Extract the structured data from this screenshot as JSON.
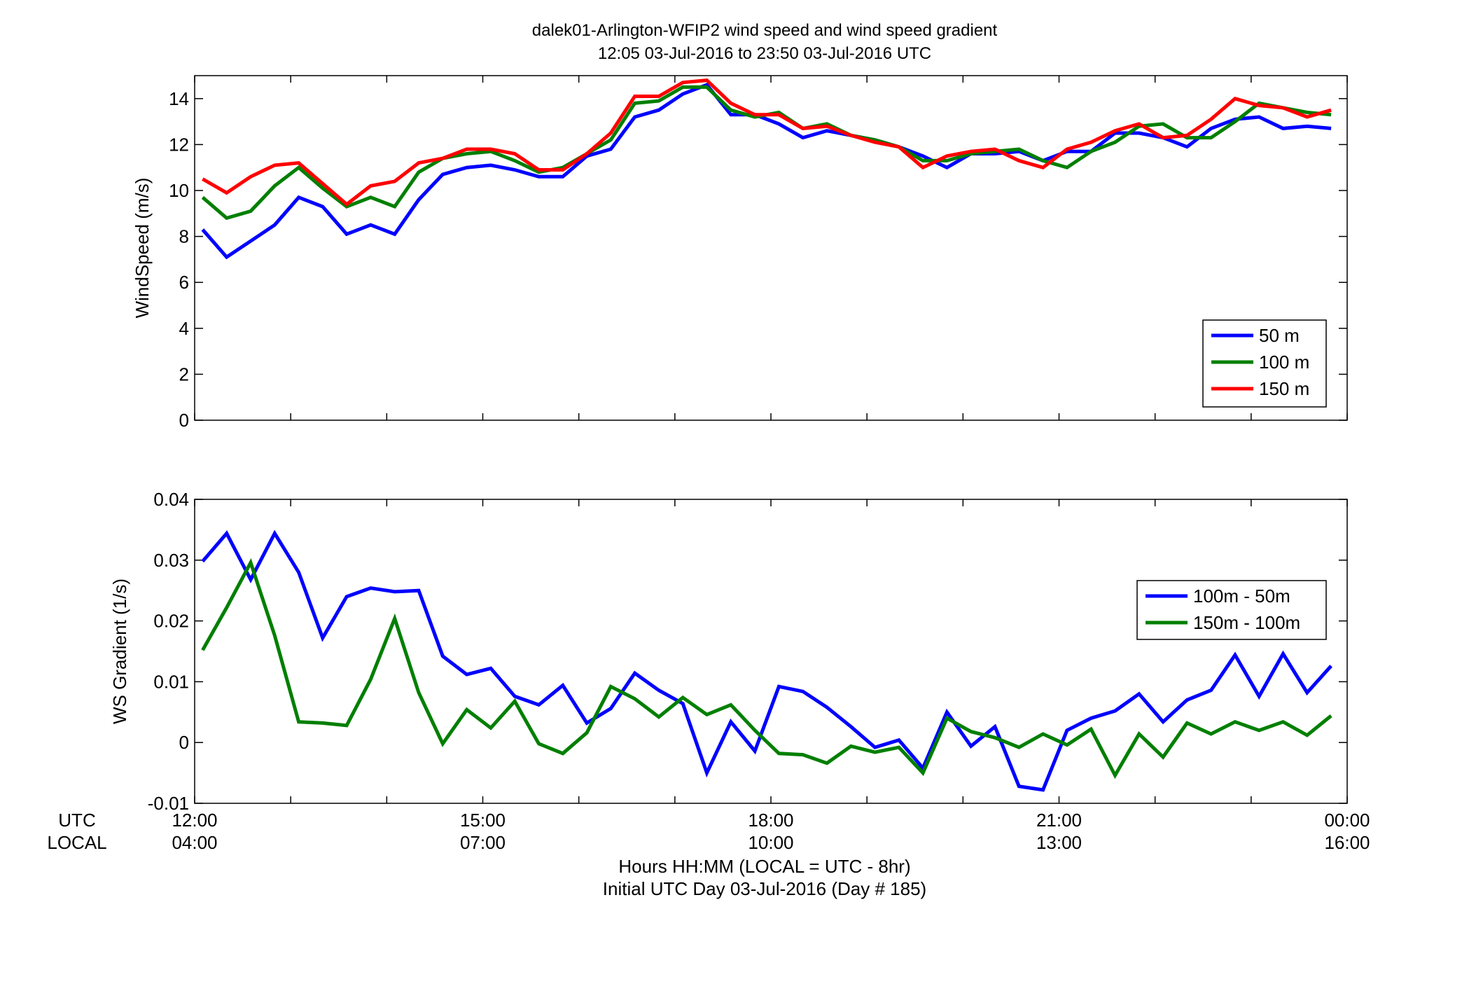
{
  "figure": {
    "title_line1": "dalek01-Arlington-WFIP2  wind speed and wind speed gradient",
    "title_line2": "12:05 03-Jul-2016 to 23:50 03-Jul-2016  UTC",
    "xlabel_line1": "Hours HH:MM  (LOCAL = UTC - 8hr)",
    "xlabel_line2": "Initial UTC Day 03-Jul-2016 (Day # 185)",
    "utc_row_label": "UTC",
    "local_row_label": "LOCAL",
    "utc_ticks": [
      "12:00",
      "15:00",
      "18:00",
      "21:00",
      "00:00"
    ],
    "local_ticks": [
      "04:00",
      "07:00",
      "10:00",
      "13:00",
      "16:00"
    ]
  },
  "chart_data": [
    {
      "type": "line",
      "ylabel": "WindSpeed (m/s)",
      "xlim": [
        12.0,
        24.0
      ],
      "ylim": [
        0,
        15
      ],
      "yticks": [
        0,
        2,
        4,
        6,
        8,
        10,
        12,
        14
      ],
      "ytick_labels": [
        "0",
        "2",
        "4",
        "6",
        "8",
        "10",
        "12",
        "14"
      ],
      "legend_position": "lower-right",
      "x": [
        12.083,
        12.333,
        12.583,
        12.833,
        13.083,
        13.333,
        13.583,
        13.833,
        14.083,
        14.333,
        14.583,
        14.833,
        15.083,
        15.333,
        15.583,
        15.833,
        16.083,
        16.333,
        16.583,
        16.833,
        17.083,
        17.333,
        17.583,
        17.833,
        18.083,
        18.333,
        18.583,
        18.833,
        19.083,
        19.333,
        19.583,
        19.833,
        20.083,
        20.333,
        20.583,
        20.833,
        21.083,
        21.333,
        21.583,
        21.833,
        22.083,
        22.333,
        22.583,
        22.833,
        23.083,
        23.333,
        23.583,
        23.833
      ],
      "series": [
        {
          "name": "50 m",
          "color": "#0000ff",
          "values": [
            8.3,
            7.1,
            7.8,
            8.5,
            9.7,
            9.3,
            8.1,
            8.5,
            8.1,
            9.6,
            10.7,
            11.0,
            11.1,
            10.9,
            10.6,
            10.6,
            11.5,
            11.8,
            13.2,
            13.5,
            14.2,
            14.6,
            13.3,
            13.3,
            12.9,
            12.3,
            12.6,
            12.4,
            12.2,
            11.9,
            11.5,
            11.0,
            11.6,
            11.6,
            11.7,
            11.3,
            11.7,
            11.7,
            12.5,
            12.5,
            12.3,
            11.9,
            12.7,
            13.1,
            13.2,
            12.7,
            12.8,
            12.7
          ]
        },
        {
          "name": "100 m",
          "color": "#007f00",
          "values": [
            9.7,
            8.8,
            9.1,
            10.2,
            11.0,
            10.1,
            9.3,
            9.7,
            9.3,
            10.8,
            11.4,
            11.6,
            11.7,
            11.3,
            10.8,
            11.0,
            11.6,
            12.2,
            13.8,
            13.9,
            14.5,
            14.5,
            13.5,
            13.2,
            13.4,
            12.7,
            12.9,
            12.4,
            12.2,
            11.9,
            11.3,
            11.3,
            11.6,
            11.7,
            11.8,
            11.3,
            11.0,
            11.7,
            12.1,
            12.8,
            12.9,
            12.3,
            12.3,
            13.0,
            13.8,
            13.6,
            13.4,
            13.3
          ]
        },
        {
          "name": "150 m",
          "color": "#ff0000",
          "values": [
            10.5,
            9.9,
            10.6,
            11.1,
            11.2,
            10.3,
            9.4,
            10.2,
            10.4,
            11.2,
            11.4,
            11.8,
            11.8,
            11.6,
            10.9,
            10.9,
            11.6,
            12.5,
            14.1,
            14.1,
            14.7,
            14.8,
            13.8,
            13.3,
            13.3,
            12.7,
            12.8,
            12.4,
            12.1,
            11.9,
            11.0,
            11.5,
            11.7,
            11.8,
            11.3,
            11.0,
            11.8,
            12.1,
            12.6,
            12.9,
            12.3,
            12.4,
            13.1,
            14.0,
            13.7,
            13.6,
            13.2,
            13.5
          ]
        }
      ]
    },
    {
      "type": "line",
      "ylabel": "WS Gradient (1/s)",
      "xlim": [
        12.0,
        24.0
      ],
      "ylim": [
        -0.01,
        0.04
      ],
      "yticks": [
        -0.01,
        0,
        0.01,
        0.02,
        0.03,
        0.04
      ],
      "ytick_labels": [
        "-0.01",
        "0",
        "0.01",
        "0.02",
        "0.03",
        "0.04"
      ],
      "legend_position": "right",
      "x": [
        12.083,
        12.333,
        12.583,
        12.833,
        13.083,
        13.333,
        13.583,
        13.833,
        14.083,
        14.333,
        14.583,
        14.833,
        15.083,
        15.333,
        15.583,
        15.833,
        16.083,
        16.333,
        16.583,
        16.833,
        17.083,
        17.333,
        17.583,
        17.833,
        18.083,
        18.333,
        18.583,
        18.833,
        19.083,
        19.333,
        19.583,
        19.833,
        20.083,
        20.333,
        20.583,
        20.833,
        21.083,
        21.333,
        21.583,
        21.833,
        22.083,
        22.333,
        22.583,
        22.833,
        23.083,
        23.333,
        23.583,
        23.833
      ],
      "series": [
        {
          "name": "100m - 50m",
          "color": "#0000ff",
          "values": [
            0.0298,
            0.0344,
            0.0268,
            0.0344,
            0.028,
            0.0172,
            0.024,
            0.0254,
            0.0248,
            0.025,
            0.0142,
            0.0112,
            0.0122,
            0.0076,
            0.0062,
            0.0094,
            0.0032,
            0.0056,
            0.0114,
            0.0086,
            0.0064,
            -0.005,
            0.0034,
            -0.0014,
            0.0092,
            0.0084,
            0.0058,
            0.0026,
            -0.0008,
            0.0004,
            -0.0042,
            0.005,
            -0.0006,
            0.0026,
            -0.0072,
            -0.0078,
            0.002,
            0.004,
            0.0052,
            0.008,
            0.0034,
            0.007,
            0.0086,
            0.0144,
            0.0076,
            0.0146,
            0.0082,
            0.0126
          ]
        },
        {
          "name": "150m - 100m",
          "color": "#007f00",
          "values": [
            0.0152,
            0.0222,
            0.0296,
            0.0176,
            0.0034,
            0.0032,
            0.0028,
            0.0104,
            0.0204,
            0.0082,
            -0.0002,
            0.0054,
            0.0024,
            0.0068,
            -0.0002,
            -0.0018,
            0.0016,
            0.0092,
            0.0072,
            0.0042,
            0.0074,
            0.0046,
            0.0062,
            0.002,
            -0.0018,
            -0.002,
            -0.0034,
            -0.0006,
            -0.0016,
            -0.0008,
            -0.005,
            0.004,
            0.0018,
            0.0008,
            -0.0008,
            0.0014,
            -0.0004,
            0.0022,
            -0.0054,
            0.0014,
            -0.0024,
            0.0032,
            0.0014,
            0.0034,
            0.002,
            0.0034,
            0.0012,
            0.0044
          ]
        }
      ]
    }
  ]
}
